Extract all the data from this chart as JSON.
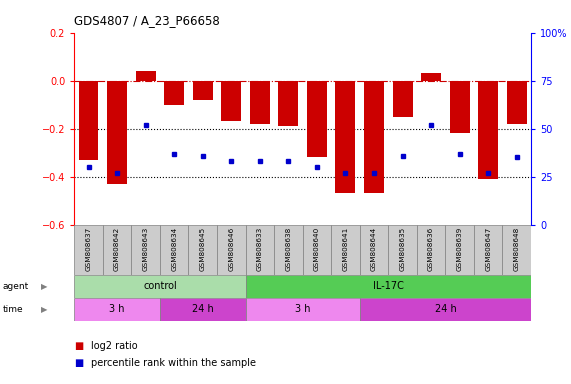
{
  "title": "GDS4807 / A_23_P66658",
  "samples": [
    "GSM808637",
    "GSM808642",
    "GSM808643",
    "GSM808634",
    "GSM808645",
    "GSM808646",
    "GSM808633",
    "GSM808638",
    "GSM808640",
    "GSM808641",
    "GSM808644",
    "GSM808635",
    "GSM808636",
    "GSM808639",
    "GSM808647",
    "GSM808648"
  ],
  "log2_ratio": [
    -0.33,
    -0.43,
    0.04,
    -0.1,
    -0.08,
    -0.17,
    -0.18,
    -0.19,
    -0.32,
    -0.47,
    -0.47,
    -0.15,
    0.03,
    -0.22,
    -0.41,
    -0.18
  ],
  "percentile_rank": [
    30,
    27,
    52,
    37,
    36,
    33,
    33,
    33,
    30,
    27,
    27,
    36,
    52,
    37,
    27,
    35
  ],
  "ylim_left": [
    -0.6,
    0.2
  ],
  "ylim_right": [
    0,
    100
  ],
  "yticks_left": [
    -0.6,
    -0.4,
    -0.2,
    0.0,
    0.2
  ],
  "yticks_right": [
    0,
    25,
    50,
    75,
    100
  ],
  "bar_color": "#cc0000",
  "dot_color": "#0000cc",
  "hline_color": "#cc0000",
  "dotted_line_color": "#000000",
  "agent_control_color": "#aaddaa",
  "agent_il17c_color": "#55cc55",
  "time_light_color": "#ee88ee",
  "time_dark_color": "#cc44cc",
  "label_bg_color": "#cccccc",
  "legend_red_label": "log2 ratio",
  "legend_blue_label": "percentile rank within the sample",
  "n": 16,
  "control_n": 6,
  "il17c_n": 10,
  "time_3h_ctrl_n": 3,
  "time_24h_ctrl_n": 3,
  "time_3h_il17c_n": 4,
  "time_24h_il17c_n": 6
}
